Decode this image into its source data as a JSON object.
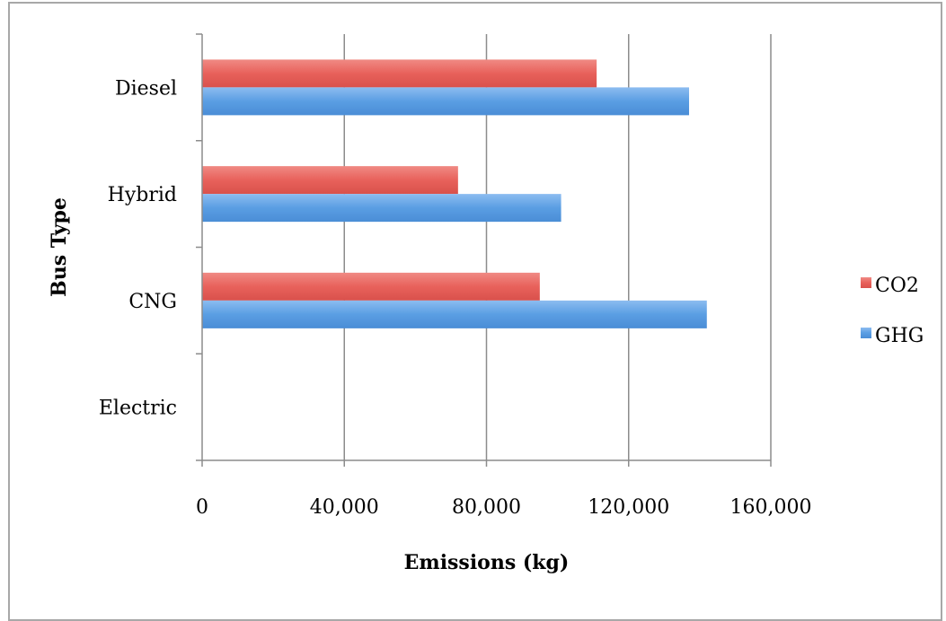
{
  "chart_data": {
    "type": "bar",
    "orientation": "horizontal",
    "categories": [
      "Diesel",
      "Hybrid",
      "CNG",
      "Electric"
    ],
    "series": [
      {
        "name": "CO2",
        "values": [
          111000,
          72000,
          95000,
          0
        ],
        "color": "#e8615b"
      },
      {
        "name": "GHG",
        "values": [
          137000,
          101000,
          142000,
          0
        ],
        "color": "#5a9ee3"
      }
    ],
    "xlabel": "Emissions (kg)",
    "ylabel": "Bus Type",
    "xlim": [
      0,
      160000
    ],
    "xticks": [
      0,
      40000,
      80000,
      120000,
      160000
    ],
    "xtick_labels": [
      "0",
      "40,000",
      "80,000",
      "120,000",
      "160,000"
    ],
    "grid": "vertical",
    "legend_position": "right"
  }
}
